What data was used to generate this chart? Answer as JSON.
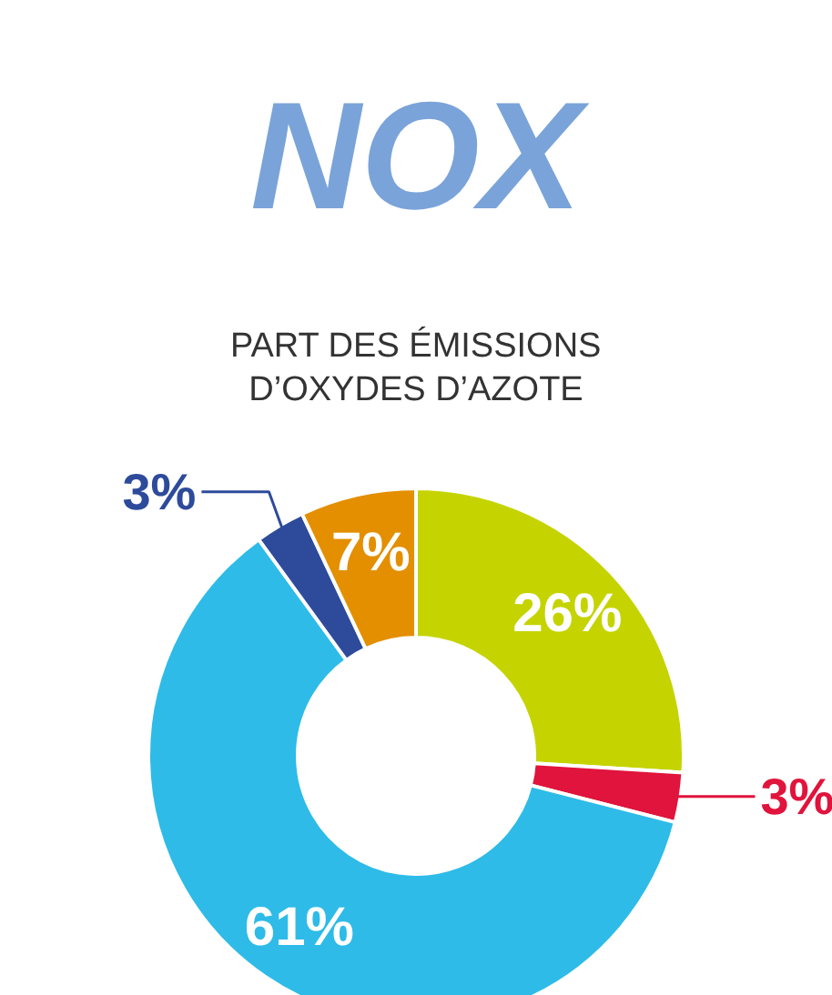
{
  "chart_data": {
    "type": "donut",
    "title": "NOX",
    "subtitle": "PART DES ÉMISSIONS\nD’OXYDES D’AZOTE",
    "categories": [
      null,
      null,
      null,
      null,
      null
    ],
    "values": [
      26,
      3,
      61,
      3,
      7
    ],
    "colors": [
      "#c5d400",
      "#e0143c",
      "#2ebbe8",
      "#2e4b9b",
      "#e38f00"
    ],
    "value_labels": [
      "26%",
      "3%",
      "61%",
      "3%",
      "7%"
    ]
  }
}
